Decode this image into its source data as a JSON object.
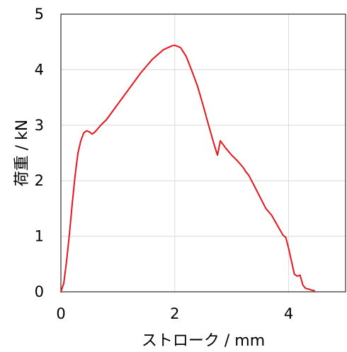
{
  "chart_data": {
    "type": "line",
    "xlabel": "ストローク / mm",
    "ylabel": "荷重 / kN",
    "xlim": [
      0,
      5
    ],
    "ylim": [
      0,
      5
    ],
    "xticks": [
      "0",
      "2",
      "4"
    ],
    "yticks": [
      "0",
      "1",
      "2",
      "3",
      "4",
      "5"
    ],
    "grid": true,
    "line_color": "#e8141b",
    "grid_color": "#d9d9d9",
    "series": [
      {
        "x": [
          0,
          0.05,
          0.1,
          0.15,
          0.2,
          0.25,
          0.3,
          0.35,
          0.4,
          0.45,
          0.5,
          0.55,
          0.6,
          0.65,
          0.7,
          0.75,
          0.8,
          1.0,
          1.2,
          1.4,
          1.6,
          1.8,
          1.95,
          2.0,
          2.1,
          2.2,
          2.3,
          2.4,
          2.5,
          2.6,
          2.7,
          2.75,
          2.8,
          2.9,
          3.0,
          3.1,
          3.2,
          3.25,
          3.3,
          3.4,
          3.5,
          3.6,
          3.7,
          3.8,
          3.9,
          3.95,
          4.0,
          4.05,
          4.1,
          4.15,
          4.2,
          4.25,
          4.3,
          4.35,
          4.4,
          4.45
        ],
        "y": [
          0,
          0.15,
          0.55,
          1.05,
          1.6,
          2.1,
          2.5,
          2.72,
          2.86,
          2.9,
          2.88,
          2.84,
          2.88,
          2.94,
          3.0,
          3.05,
          3.1,
          3.38,
          3.66,
          3.94,
          4.18,
          4.36,
          4.43,
          4.44,
          4.4,
          4.24,
          3.98,
          3.7,
          3.35,
          2.98,
          2.62,
          2.46,
          2.72,
          2.58,
          2.46,
          2.36,
          2.24,
          2.16,
          2.1,
          1.9,
          1.7,
          1.5,
          1.38,
          1.2,
          1.02,
          0.98,
          0.78,
          0.55,
          0.32,
          0.28,
          0.3,
          0.12,
          0.06,
          0.05,
          0.03,
          0.02
        ]
      }
    ]
  }
}
